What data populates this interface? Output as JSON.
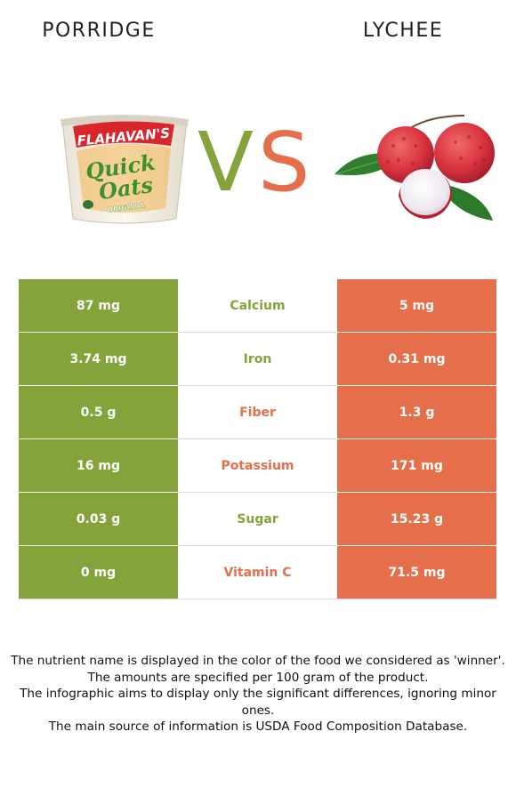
{
  "header": {
    "left_food": "PORRIDGE",
    "right_food": "LYCHEE",
    "vs": [
      "V",
      "S"
    ]
  },
  "colors": {
    "left": "#84a33a",
    "right": "#e56e4b"
  },
  "product_label": {
    "brand": "FLAHAVAN'S",
    "line1": "Quick",
    "line2": "Oats",
    "variant": "ORIGINAL"
  },
  "rows": [
    {
      "nutrient": "Calcium",
      "left": "87 mg",
      "right": "5 mg",
      "winner": "left"
    },
    {
      "nutrient": "Iron",
      "left": "3.74 mg",
      "right": "0.31 mg",
      "winner": "left"
    },
    {
      "nutrient": "Fiber",
      "left": "0.5 g",
      "right": "1.3 g",
      "winner": "right"
    },
    {
      "nutrient": "Potassium",
      "left": "16 mg",
      "right": "171 mg",
      "winner": "right"
    },
    {
      "nutrient": "Sugar",
      "left": "0.03 g",
      "right": "15.23 g",
      "winner": "left"
    },
    {
      "nutrient": "Vitamin C",
      "left": "0 mg",
      "right": "71.5 mg",
      "winner": "right"
    }
  ],
  "notes": [
    "The nutrient name is displayed in the color of the food we considered as 'winner'.",
    "The amounts are specified per 100 gram of the product.",
    "The infographic aims to display only the significant differences, ignoring minor ones.",
    "The main source of information is USDA Food Composition Database."
  ]
}
